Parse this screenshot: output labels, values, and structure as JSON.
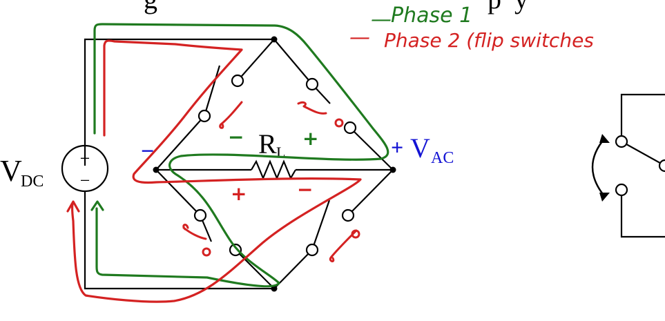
{
  "title_fragment": "g",
  "title_fragment_right": "p",
  "title_fragment_end": "y",
  "legend": {
    "phase1": {
      "label": "Phase 1",
      "dash": "—",
      "color": "#1f7a1f"
    },
    "phase2": {
      "label": "Phase 2 (flip switches",
      "dash": "—",
      "color": "#d42222"
    }
  },
  "source": {
    "label": "V",
    "subscript": "DC",
    "plus": "+",
    "minus": "−"
  },
  "resistor": {
    "label": "R",
    "subscript": "L"
  },
  "output": {
    "sign": "+",
    "label": "V",
    "subscript": "AC",
    "color": "#1414d4"
  },
  "left_node_sign": "−",
  "phase1_signs": {
    "left": "−",
    "right": "+"
  },
  "phase2_signs": {
    "left": "+",
    "right": "−"
  },
  "colors": {
    "wire": "#000000",
    "phase1": "#1f7a1f",
    "phase2": "#d42222",
    "output": "#1414d4"
  }
}
